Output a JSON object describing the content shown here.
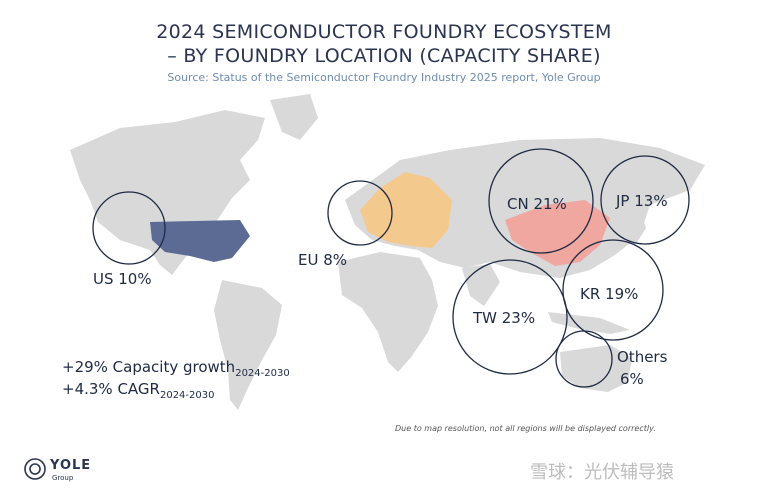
{
  "header": {
    "title_line1": "2024 SEMICONDUCTOR FOUNDRY ECOSYSTEM",
    "title_line2": "– BY FOUNDRY LOCATION (CAPACITY SHARE)",
    "source": "Source: Status of the Semiconductor Foundry Industry 2025 report, Yole Group"
  },
  "regions": [
    {
      "id": "us",
      "label": "US 10%",
      "share_pct": 10,
      "color": "#5b6b94"
    },
    {
      "id": "eu",
      "label": "EU 8%",
      "share_pct": 8,
      "color": "#f4c98e"
    },
    {
      "id": "cn",
      "label": "CN 21%",
      "share_pct": 21,
      "color": "#f0a79f"
    },
    {
      "id": "jp",
      "label": "JP 13%",
      "share_pct": 13
    },
    {
      "id": "kr",
      "label": "KR 19%",
      "share_pct": 19
    },
    {
      "id": "tw",
      "label": "TW 23%",
      "share_pct": 23
    },
    {
      "id": "others",
      "label_line1": "Others",
      "label_line2": "6%",
      "share_pct": 6
    }
  ],
  "stats": {
    "line1_main": "+29% Capacity growth",
    "line1_sub": "2024-2030",
    "line2_main": "+4.3% CAGR",
    "line2_sub": "2024-2030"
  },
  "note": "Due to map resolution, not all regions will be displayed correctly.",
  "logo": {
    "name": "YOLE",
    "sub": "Group"
  },
  "watermark": "雪球：光伏辅导猿",
  "colors": {
    "land": "#d9d9d9",
    "circle": "#1f2a44",
    "text": "#1f2a44"
  }
}
